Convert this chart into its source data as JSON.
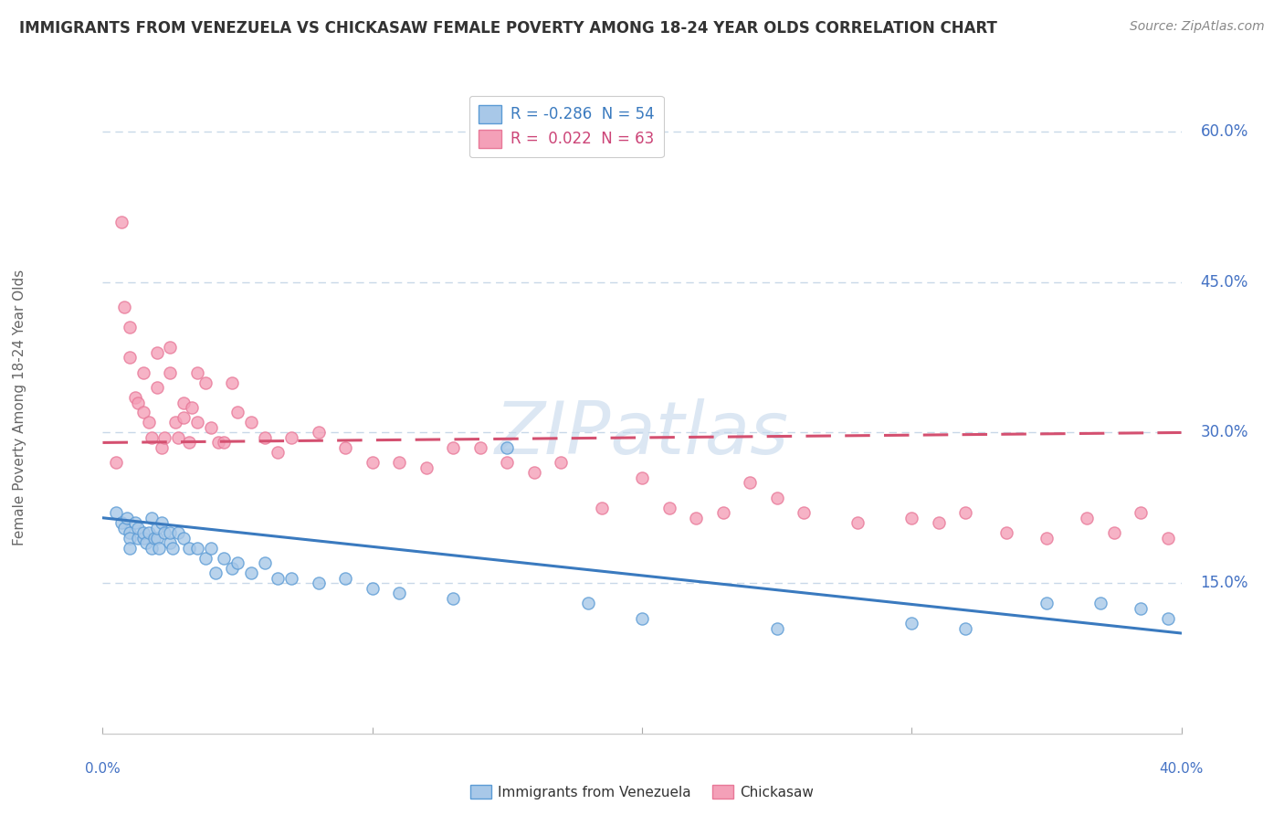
{
  "title": "IMMIGRANTS FROM VENEZUELA VS CHICKASAW FEMALE POVERTY AMONG 18-24 YEAR OLDS CORRELATION CHART",
  "source": "Source: ZipAtlas.com",
  "ylabel": "Female Poverty Among 18-24 Year Olds",
  "xlim": [
    0.0,
    0.4
  ],
  "ylim": [
    0.0,
    0.65
  ],
  "xticks": [
    0.0,
    0.1,
    0.2,
    0.3,
    0.4
  ],
  "yticks": [
    0.15,
    0.3,
    0.45,
    0.6
  ],
  "ytick_labels": [
    "15.0%",
    "30.0%",
    "45.0%",
    "60.0%"
  ],
  "xtick_labels_bottom": [
    "0.0%",
    "40.0%"
  ],
  "xtick_pos_bottom": [
    0.0,
    0.4
  ],
  "blue_R": "-0.286",
  "blue_N": "54",
  "pink_R": "0.022",
  "pink_N": "63",
  "blue_color": "#a8c8e8",
  "pink_color": "#f4a0b8",
  "blue_edge_color": "#5b9bd5",
  "pink_edge_color": "#e87898",
  "blue_line_color": "#3a7abf",
  "pink_line_color": "#d45070",
  "legend_label_blue": "Immigrants from Venezuela",
  "legend_label_pink": "Chickasaw",
  "watermark": "ZIPatlas",
  "background_color": "#ffffff",
  "blue_scatter_x": [
    0.005,
    0.007,
    0.008,
    0.009,
    0.01,
    0.01,
    0.01,
    0.012,
    0.013,
    0.013,
    0.015,
    0.015,
    0.016,
    0.017,
    0.018,
    0.018,
    0.019,
    0.02,
    0.02,
    0.021,
    0.022,
    0.023,
    0.025,
    0.025,
    0.026,
    0.028,
    0.03,
    0.032,
    0.035,
    0.038,
    0.04,
    0.042,
    0.045,
    0.048,
    0.05,
    0.055,
    0.06,
    0.065,
    0.07,
    0.08,
    0.09,
    0.1,
    0.11,
    0.13,
    0.15,
    0.18,
    0.2,
    0.25,
    0.3,
    0.32,
    0.35,
    0.37,
    0.385,
    0.395
  ],
  "blue_scatter_y": [
    0.22,
    0.21,
    0.205,
    0.215,
    0.2,
    0.195,
    0.185,
    0.21,
    0.195,
    0.205,
    0.195,
    0.2,
    0.19,
    0.2,
    0.215,
    0.185,
    0.195,
    0.195,
    0.205,
    0.185,
    0.21,
    0.2,
    0.19,
    0.2,
    0.185,
    0.2,
    0.195,
    0.185,
    0.185,
    0.175,
    0.185,
    0.16,
    0.175,
    0.165,
    0.17,
    0.16,
    0.17,
    0.155,
    0.155,
    0.15,
    0.155,
    0.145,
    0.14,
    0.135,
    0.285,
    0.13,
    0.115,
    0.105,
    0.11,
    0.105,
    0.13,
    0.13,
    0.125,
    0.115
  ],
  "pink_scatter_x": [
    0.005,
    0.007,
    0.008,
    0.01,
    0.01,
    0.012,
    0.013,
    0.015,
    0.015,
    0.017,
    0.018,
    0.02,
    0.02,
    0.022,
    0.023,
    0.025,
    0.025,
    0.027,
    0.028,
    0.03,
    0.03,
    0.032,
    0.033,
    0.035,
    0.035,
    0.038,
    0.04,
    0.043,
    0.045,
    0.048,
    0.05,
    0.055,
    0.06,
    0.065,
    0.07,
    0.08,
    0.09,
    0.1,
    0.11,
    0.12,
    0.13,
    0.14,
    0.15,
    0.16,
    0.17,
    0.185,
    0.2,
    0.21,
    0.22,
    0.23,
    0.24,
    0.25,
    0.26,
    0.28,
    0.3,
    0.31,
    0.32,
    0.335,
    0.35,
    0.365,
    0.375,
    0.385,
    0.395
  ],
  "pink_scatter_y": [
    0.27,
    0.51,
    0.425,
    0.375,
    0.405,
    0.335,
    0.33,
    0.32,
    0.36,
    0.31,
    0.295,
    0.345,
    0.38,
    0.285,
    0.295,
    0.36,
    0.385,
    0.31,
    0.295,
    0.315,
    0.33,
    0.29,
    0.325,
    0.31,
    0.36,
    0.35,
    0.305,
    0.29,
    0.29,
    0.35,
    0.32,
    0.31,
    0.295,
    0.28,
    0.295,
    0.3,
    0.285,
    0.27,
    0.27,
    0.265,
    0.285,
    0.285,
    0.27,
    0.26,
    0.27,
    0.225,
    0.255,
    0.225,
    0.215,
    0.22,
    0.25,
    0.235,
    0.22,
    0.21,
    0.215,
    0.21,
    0.22,
    0.2,
    0.195,
    0.215,
    0.2,
    0.22,
    0.195
  ],
  "blue_trend_x": [
    0.0,
    0.4
  ],
  "blue_trend_y": [
    0.215,
    0.1
  ],
  "pink_trend_x": [
    0.0,
    0.4
  ],
  "pink_trend_y": [
    0.29,
    0.3
  ],
  "grid_color": "#c8d8e8",
  "grid_yticks": [
    0.15,
    0.3,
    0.45,
    0.6
  ]
}
